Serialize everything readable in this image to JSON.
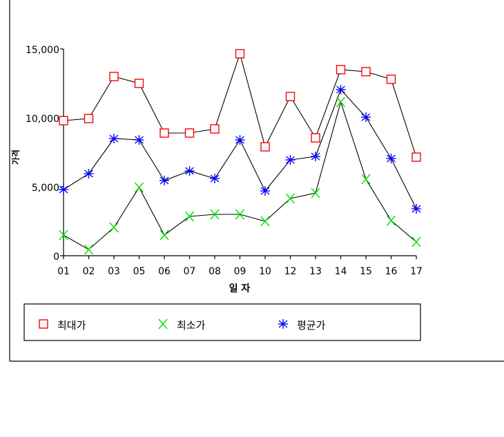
{
  "chart_data": {
    "type": "line",
    "title": "",
    "xlabel": "일 자",
    "ylabel": "가격",
    "categories": [
      "01",
      "02",
      "03",
      "05",
      "06",
      "07",
      "08",
      "09",
      "10",
      "12",
      "13",
      "14",
      "15",
      "16",
      "17"
    ],
    "ylim": [
      0,
      15000
    ],
    "yticks": [
      0,
      5000,
      10000,
      15000
    ],
    "ytick_labels": [
      "0",
      "5,000",
      "10,000",
      "15,000"
    ],
    "grid": false,
    "legend_position": "bottom",
    "series": [
      {
        "name": "최대가",
        "marker": "square",
        "color": "#ff0000",
        "values": [
          9800,
          9950,
          13000,
          12500,
          8900,
          8900,
          9200,
          14650,
          7900,
          11550,
          8550,
          13500,
          13350,
          12800,
          7150
        ]
      },
      {
        "name": "최소가",
        "marker": "x",
        "color": "#00e000",
        "values": [
          1500,
          450,
          2050,
          4950,
          1500,
          2850,
          3000,
          3000,
          2500,
          4150,
          4550,
          11150,
          5550,
          2550,
          1000
        ]
      },
      {
        "name": "평균가",
        "marker": "asterisk",
        "color": "#0000ff",
        "values": [
          4800,
          5950,
          8500,
          8400,
          5450,
          6150,
          5600,
          8400,
          4700,
          6950,
          7200,
          12050,
          10050,
          7050,
          3400
        ]
      }
    ]
  }
}
